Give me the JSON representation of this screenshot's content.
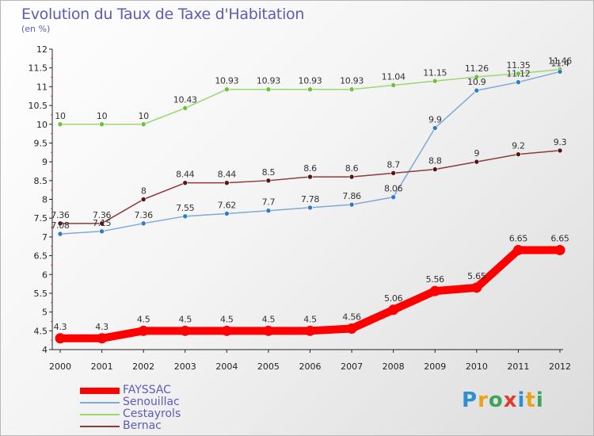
{
  "title": "Evolution du Taux de Taxe d'Habitation",
  "unit_label": "(en %)",
  "logo": {
    "text": "Proxiti",
    "letters": [
      "P",
      "r",
      "o",
      "x",
      "i",
      "t",
      "i"
    ],
    "colors": [
      "#2a8fd6",
      "#e8a317",
      "#3aa55b",
      "#e23b2e",
      "#2a8fd6",
      "#e8a317",
      "#3aa55b"
    ]
  },
  "chart_data": {
    "type": "line",
    "x": [
      "2000",
      "2001",
      "2002",
      "2003",
      "2004",
      "2005",
      "2006",
      "2007",
      "2008",
      "2009",
      "2010",
      "2011",
      "2012"
    ],
    "ylim": [
      4,
      12
    ],
    "yticks": [
      "4",
      "4.5",
      "5",
      "5.5",
      "6",
      "6.5",
      "7",
      "7.5",
      "8",
      "8.5",
      "9",
      "9.5",
      "10",
      "10.5",
      "11",
      "11.5",
      "12"
    ],
    "grid": false,
    "legend_position": "bottom-left",
    "series": [
      {
        "name": "FAYSSAC",
        "color": "#ff0000",
        "marker_color": "#ff0000",
        "emphasis": true,
        "values": [
          4.3,
          4.3,
          4.5,
          4.5,
          4.5,
          4.5,
          4.5,
          4.56,
          5.06,
          5.56,
          5.65,
          6.65,
          6.65
        ],
        "labels": [
          "4.3",
          "4.3",
          "4.5",
          "4.5",
          "4.5",
          "4.5",
          "4.5",
          "4.56",
          "5.06",
          "5.56",
          "5.65",
          "6.65",
          "6.65"
        ]
      },
      {
        "name": "Senouillac",
        "color": "#7fa9d6",
        "marker_color": "#2f7bc9",
        "emphasis": false,
        "values": [
          7.08,
          7.15,
          7.36,
          7.55,
          7.62,
          7.7,
          7.78,
          7.86,
          8.06,
          9.9,
          10.9,
          11.12,
          11.4
        ],
        "labels": [
          "7.08",
          "7.15",
          "7.36",
          "7.55",
          "7.62",
          "7.7",
          "7.78",
          "7.86",
          "8.06",
          "9.9",
          "10.9",
          "11.12",
          "11.4"
        ]
      },
      {
        "name": "Cestayrols",
        "color": "#99d96f",
        "marker_color": "#6cc23a",
        "emphasis": false,
        "values": [
          10,
          10,
          10,
          10.43,
          10.93,
          10.93,
          10.93,
          10.93,
          11.04,
          11.15,
          11.26,
          11.35,
          11.46
        ],
        "labels": [
          "10",
          "10",
          "10",
          "10.43",
          "10.93",
          "10.93",
          "10.93",
          "10.93",
          "11.04",
          "11.15",
          "11.26",
          "11.35",
          "11.46"
        ]
      },
      {
        "name": "Bernac",
        "color": "#8c3b3b",
        "marker_color": "#5a1414",
        "emphasis": false,
        "values": [
          7.36,
          7.36,
          8,
          8.44,
          8.44,
          8.5,
          8.6,
          8.6,
          8.7,
          8.8,
          9,
          9.2,
          9.3
        ],
        "labels": [
          "7.36",
          "7.36",
          "8",
          "8.44",
          "8.44",
          "8.5",
          "8.6",
          "8.6",
          "8.7",
          "8.8",
          "9",
          "9.2",
          "9.3"
        ]
      }
    ]
  }
}
